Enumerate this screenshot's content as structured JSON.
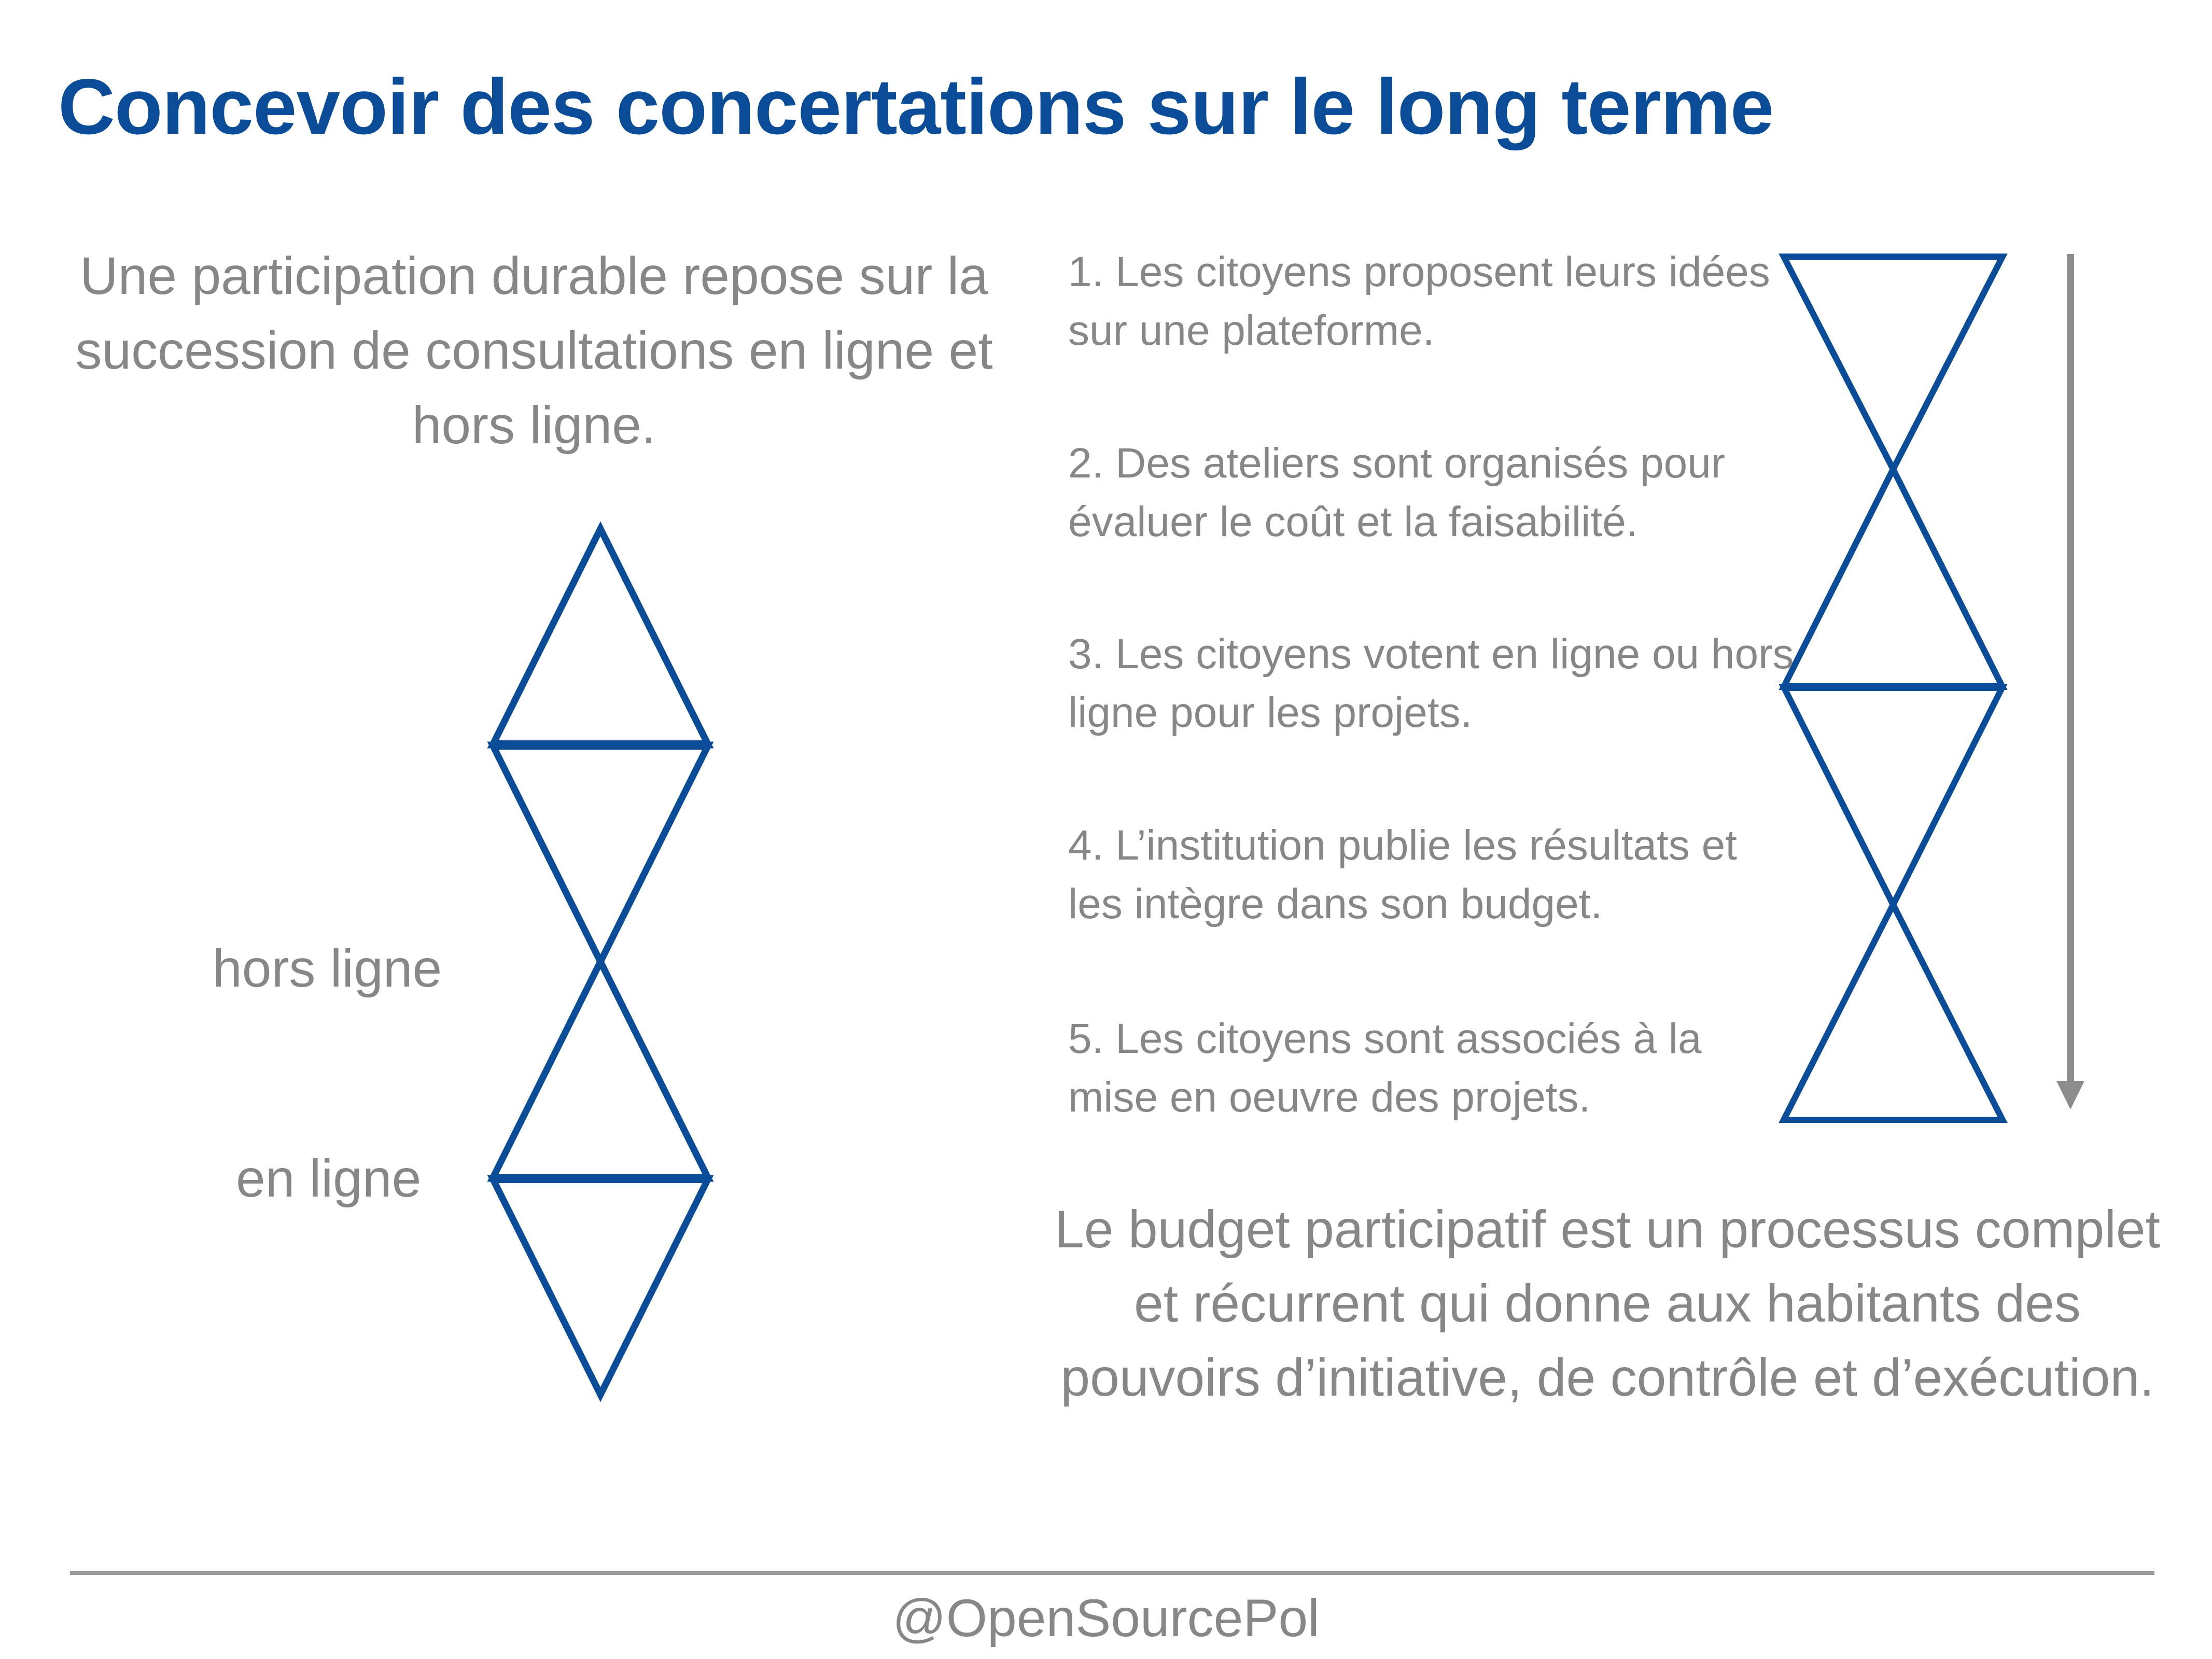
{
  "title": "Concevoir des concertations sur le long terme",
  "left": {
    "intro": "Une participation durable repose sur la succession de consultations en ligne et hors ligne.",
    "labels": {
      "hors_ligne": "hors ligne",
      "en_ligne": "en ligne"
    }
  },
  "steps": [
    "1. Les citoyens proposent leurs idées sur une plateforme.",
    "2. Des ateliers sont organisés pour évaluer le coût et la faisabilité.",
    "3. Les citoyens votent en ligne ou hors ligne pour les projets.",
    "4. L’institution publie les résultats et les intègre dans son budget.",
    "5. Les citoyens sont associés à la mise en oeuvre des projets."
  ],
  "conclusion": "Le budget participatif est un processus complet et récurrent qui donne aux habitants des pouvoirs d’initiative, de contrôle et d’exécution.",
  "footer": "@OpenSourcePol",
  "colors": {
    "accent": "#0b4c99",
    "text": "#878787",
    "arrow": "#8c8c8c"
  }
}
